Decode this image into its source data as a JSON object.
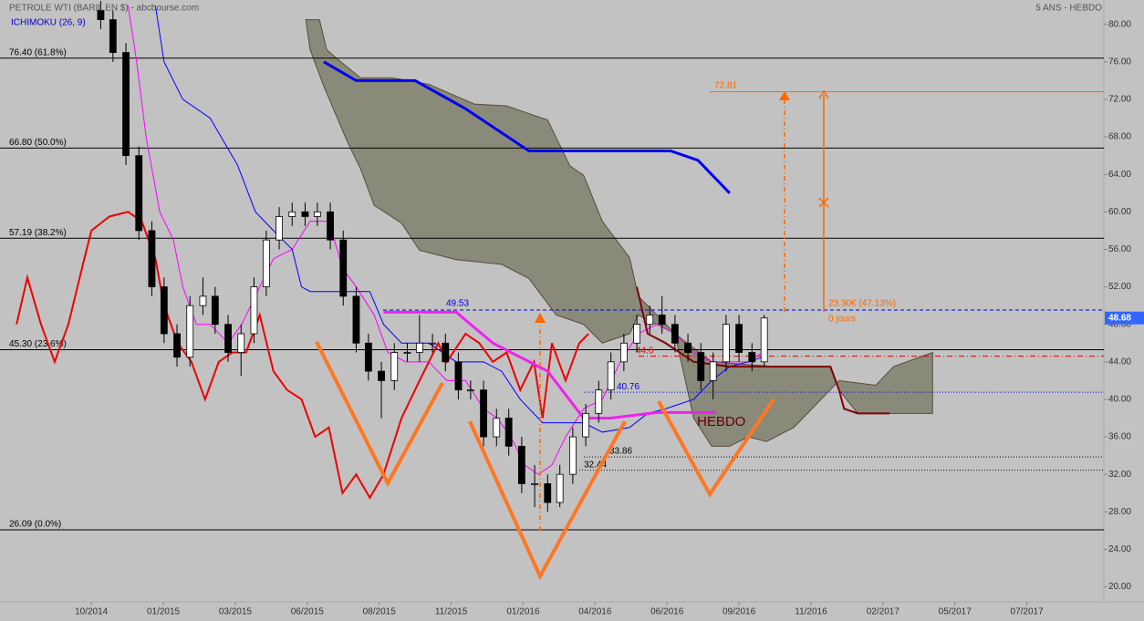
{
  "chart_data": {
    "type": "candlestick",
    "title": "PETROLE WTI (BARIL EN $) - abcbourse.com",
    "subtitle": "5 ANS - HEBDO",
    "indicator": "ICHIMOKU (26, 9)",
    "xlim": [
      -12.7,
      140.7
    ],
    "xticks": [
      {
        "value": 0,
        "label": "10/2014"
      },
      {
        "value": 10,
        "label": "01/2015"
      },
      {
        "value": 20,
        "label": "03/2015"
      },
      {
        "value": 30,
        "label": "06/2015"
      },
      {
        "value": 40,
        "label": "08/2015"
      },
      {
        "value": 50,
        "label": "11/2015"
      },
      {
        "value": 60,
        "label": "01/2016"
      },
      {
        "value": 70,
        "label": "04/2016"
      },
      {
        "value": 80,
        "label": "06/2016"
      },
      {
        "value": 90,
        "label": "09/2016"
      },
      {
        "value": 100,
        "label": "11/2016"
      },
      {
        "value": 110,
        "label": "02/2017"
      },
      {
        "value": 120,
        "label": "05/2017"
      },
      {
        "value": 130,
        "label": "07/2017"
      }
    ],
    "ylim": [
      18.4,
      82.6
    ],
    "yticks": [
      {
        "value": 20,
        "label": "20.00"
      },
      {
        "value": 24,
        "label": "24.00"
      },
      {
        "value": 28,
        "label": "28.00"
      },
      {
        "value": 32,
        "label": "32.00"
      },
      {
        "value": 36,
        "label": "36.00"
      },
      {
        "value": 40,
        "label": "40.00"
      },
      {
        "value": 44,
        "label": "44.00"
      },
      {
        "value": 48,
        "label": "48.00"
      },
      {
        "value": 52,
        "label": "52.00"
      },
      {
        "value": 56,
        "label": "56.00"
      },
      {
        "value": 60,
        "label": "60.00"
      },
      {
        "value": 64,
        "label": "64.00"
      },
      {
        "value": 68,
        "label": "68.00"
      },
      {
        "value": 72,
        "label": "72.00"
      },
      {
        "value": 76,
        "label": "76.00"
      },
      {
        "value": 80,
        "label": "80.00"
      }
    ],
    "x": [
      1.3,
      3.0,
      4.8,
      6.6,
      8.4,
      10.1,
      11.9,
      13.7,
      15.5,
      17.2,
      19.0,
      20.8,
      22.6,
      24.3,
      26.1,
      27.9,
      29.7,
      31.4,
      33.2,
      35.0,
      36.8,
      38.5,
      40.3,
      42.1,
      43.9,
      45.6,
      47.4,
      49.2,
      51.0,
      52.7,
      54.5,
      56.3,
      58.0,
      59.8,
      61.6,
      63.4,
      65.1,
      66.9,
      68.7,
      70.5,
      72.2,
      74.0,
      75.8,
      77.6,
      79.3,
      81.1,
      82.9,
      84.7,
      86.4,
      88.2,
      90.0,
      91.8,
      93.5
    ],
    "open": [
      81.5,
      80.5,
      77,
      66,
      58,
      52,
      47,
      44.5,
      50,
      51,
      48,
      45,
      47,
      52,
      57,
      59.5,
      60,
      59.5,
      60,
      57,
      51,
      46,
      43,
      42,
      45,
      45,
      46,
      46,
      44,
      41,
      41,
      36,
      38,
      35,
      31,
      31,
      29,
      32,
      36,
      38.5,
      41,
      44,
      46,
      48,
      49,
      48,
      46,
      45,
      42,
      44,
      48,
      45,
      44
    ],
    "high": [
      82.5,
      81.5,
      78,
      67,
      59,
      53,
      48,
      51,
      53,
      52,
      49,
      48,
      53,
      58,
      60.5,
      61,
      61,
      61,
      61,
      58,
      52,
      47,
      44,
      46,
      46,
      49,
      47,
      47,
      45,
      42,
      42,
      39,
      39,
      36,
      33,
      32,
      33,
      37,
      39.5,
      42,
      45,
      47,
      49,
      50,
      51,
      49,
      47,
      46,
      45,
      49,
      49,
      46,
      49
    ],
    "low": [
      79.5,
      76,
      65,
      57,
      51,
      46,
      43.5,
      43.5,
      49,
      47,
      44,
      42.5,
      46,
      51,
      56,
      58.5,
      58.5,
      58.5,
      56,
      50,
      45,
      42,
      38,
      41,
      44,
      44,
      45,
      43,
      40,
      40,
      35,
      35,
      34,
      30,
      28.5,
      28,
      28.5,
      31,
      35,
      37.5,
      40,
      43,
      45,
      47,
      47,
      45,
      44,
      41,
      40,
      43,
      44,
      43,
      43.5
    ],
    "close": [
      80.5,
      77,
      66,
      58,
      52,
      47,
      44.5,
      50,
      51,
      48,
      45,
      47,
      52,
      57,
      59.5,
      60,
      59.5,
      60,
      57,
      51,
      46,
      43,
      42,
      45,
      45,
      46,
      46,
      44,
      41,
      41,
      36,
      38,
      35,
      31,
      31,
      29,
      32,
      36,
      38.5,
      41,
      44,
      46,
      48,
      49,
      48,
      46,
      45,
      42,
      44,
      48,
      45,
      44,
      48.68
    ],
    "up_color": "#ffffff",
    "down_color": "#000000",
    "cloud_color": "#8a8a7a",
    "cloud": [
      {
        "x": [
          29.8,
          30.4,
          32.3,
          35.5,
          37.4,
          39.3,
          43.1,
          45.6,
          50.7,
          57.0,
          60.8,
          64.6,
          68.4,
          71.0,
          74.8,
          76.0,
          81.1,
          83.7,
          86.2,
          88.7,
          91.3,
          93.8,
          97.6,
          101.4,
          103.9,
          109.0,
          111.5,
          116.9
        ],
        "values": [
          80.5,
          77.3,
          73.4,
          67.6,
          64.6,
          60.7,
          58.8,
          55.9,
          54.9,
          54.4,
          52.9,
          49,
          48,
          46,
          47,
          49,
          47,
          38,
          35,
          35,
          36,
          35.5,
          37,
          40,
          42,
          41.5,
          43.5,
          45
        ]
      },
      {
        "x": [
          29.8,
          31.7,
          32.7,
          34.2,
          37.4,
          41.8,
          46.9,
          53.2,
          57.7,
          59.6,
          63.4,
          66.5,
          68.4,
          71.0,
          74.8,
          76.0,
          78.6,
          81.1,
          86.2,
          95.1,
          102.7,
          103.9,
          106.5,
          116.9
        ],
        "values": [
          80.5,
          80.5,
          77.3,
          76.3,
          74.3,
          74.3,
          73.6,
          71.5,
          71.3,
          70.8,
          69.8,
          64.9,
          63.9,
          59,
          55.1,
          51,
          49,
          47,
          44,
          43.5,
          43.5,
          41,
          38.5,
          38.5
        ]
      }
    ],
    "series": [
      {
        "color": "#ff00ff",
        "width": 1,
        "x": [
          5.1,
          6.3,
          7.6,
          9.5,
          11.4,
          12.7,
          14.6,
          16.5,
          19.0,
          20.9,
          23.4,
          25.3,
          27.9,
          30.4,
          33.0,
          34.9,
          36.8,
          39.3,
          41.2,
          43.7,
          46.9,
          49.4,
          52.0,
          54.5,
          56.4,
          58.3,
          60.2,
          62.1,
          64.0,
          65.9,
          68.4,
          71.0,
          73.5,
          76.0,
          78.6,
          81.1,
          83.7,
          86.2,
          88.7,
          91.3,
          93.2
        ],
        "values": [
          82,
          76,
          68,
          60,
          57,
          52,
          48,
          48,
          46,
          48,
          52,
          55,
          56,
          59,
          59,
          54,
          52,
          49,
          45,
          44,
          44,
          42,
          42,
          39,
          38,
          36,
          33,
          32,
          33,
          36,
          39,
          40,
          44,
          47,
          48,
          47,
          45,
          44,
          44,
          44,
          45
        ]
      },
      {
        "color": "#0000ff",
        "width": 1,
        "x": [
          8.9,
          10.1,
          12.7,
          16.5,
          20.3,
          22.8,
          25.3,
          27.9,
          29.2,
          30.4,
          38.7,
          40.6,
          43.1,
          46.9,
          50.7,
          54.5,
          57.0,
          59.6,
          62.7,
          68.4,
          71.0,
          74.8,
          77.3,
          79.8,
          83.7,
          86.2,
          88.7,
          91.3,
          93.2
        ],
        "values": [
          82,
          76,
          72,
          70,
          65,
          60,
          58,
          56,
          52,
          51.5,
          51.5,
          48,
          46,
          46,
          44,
          44,
          43,
          40,
          37.5,
          37.5,
          36.5,
          37,
          38.5,
          39,
          40,
          42,
          43.5,
          44,
          44.5
        ]
      },
      {
        "color": "#ee0000",
        "width": 2,
        "x": [
          -10.4,
          -8.9,
          -7.0,
          -5.1,
          -3.2,
          -1.3,
          0,
          2.5,
          5.1,
          7.0,
          8.9,
          10.1,
          12.0,
          13.9,
          15.8,
          17.7,
          19.6,
          21.5,
          23.4,
          25.3,
          27.2,
          29.2,
          31.1,
          33.0,
          34.9,
          36.8,
          38.7,
          40.6,
          43.1,
          45.6,
          48.2,
          49.4,
          52.0,
          53.9,
          55.8,
          57.7,
          59.6,
          61.5,
          62.7,
          64.0,
          65.9,
          67.8,
          69.1
        ],
        "values": [
          48,
          53,
          48,
          44,
          48,
          54,
          58,
          59.5,
          60,
          59,
          55,
          50,
          46,
          44,
          40,
          44,
          45,
          45,
          49,
          43,
          41,
          40,
          36,
          37,
          30,
          32,
          29.5,
          32,
          38,
          42,
          46,
          44,
          47,
          46,
          44,
          45,
          41,
          44,
          38,
          46,
          42,
          46,
          47
        ]
      },
      {
        "color": "#ee22ee",
        "width": 3,
        "x": [
          40.6,
          50.7,
          55.8,
          63.4,
          68.4,
          72.2,
          78.6,
          86.8
        ],
        "values": [
          49.3,
          49.3,
          46,
          43,
          38,
          38,
          38.6,
          38.6
        ]
      },
      {
        "color": "#0000ee",
        "width": 3,
        "x": [
          32.3,
          36.8,
          45.0,
          52.0,
          60.8,
          80.5,
          84.3,
          88.7
        ],
        "values": [
          76,
          74,
          74,
          71,
          66.5,
          66.5,
          65.5,
          62
        ]
      },
      {
        "color": "#800000",
        "width": 2,
        "x": [
          75.8,
          77.3,
          79.8,
          83.7,
          88.7,
          95.1,
          102.7,
          103.9,
          104.6,
          106.5,
          110.9
        ],
        "values": [
          52,
          47,
          46,
          44,
          43.5,
          43.5,
          43.5,
          41,
          39,
          38.5,
          38.5
        ]
      }
    ],
    "levels": [
      {
        "value": 76.4,
        "label": "76.40  (61.8%)",
        "color": "#000000",
        "dash": "solid"
      },
      {
        "value": 66.8,
        "label": "66.80  (50.0%)",
        "color": "#000000",
        "dash": "solid"
      },
      {
        "value": 57.19,
        "label": "57.19  (38.2%)",
        "color": "#000000",
        "dash": "solid"
      },
      {
        "value": 45.3,
        "label": "45.30  (23.6%)",
        "color": "#000000",
        "dash": "solid"
      },
      {
        "value": 26.09,
        "label": "26.09  (0.0%)",
        "color": "#000000",
        "dash": "solid"
      },
      {
        "value": 72.81,
        "label": "72.81",
        "color": "#ff6600",
        "dash": "solid"
      },
      {
        "value": 49.53,
        "label": "49.53",
        "color": "#0000dd",
        "dash": "dashed"
      },
      {
        "value": 44.6,
        "label": "44.6",
        "color": "#dd0000",
        "dash": "dashdot"
      },
      {
        "value": 40.76,
        "label": "40.76",
        "color": "#0000dd",
        "dash": "dotted"
      },
      {
        "value": 33.86,
        "label": "33.86",
        "color": "#000000",
        "dash": "dotted"
      },
      {
        "value": 32.44,
        "label": "32.44",
        "color": "#000000",
        "dash": "dotted"
      }
    ],
    "last": {
      "value": 48.68,
      "label": "48.68",
      "color": "#3366ff"
    },
    "annotations": [
      {
        "text": "23.30€ (47.13%)",
        "color": "#ff6600"
      },
      {
        "text": "0 jours",
        "color": "#ff6600"
      },
      {
        "text": "HEBDO",
        "color": "#660000"
      }
    ]
  }
}
